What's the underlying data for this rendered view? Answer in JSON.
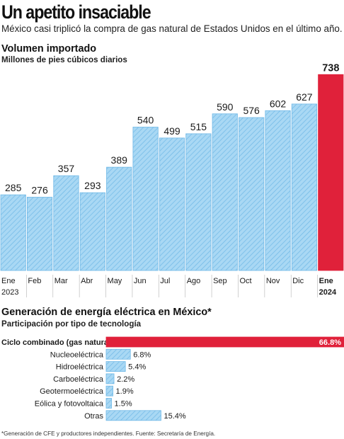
{
  "title": "Un apetito insaciable",
  "subtitle": "México casi triplicó la compra de gas natural de Estados Unidos en el último año.",
  "footnote": "*Generación de CFE y productores independientes. Fuente: Secretaría de Energía.",
  "colors": {
    "bar": "#a9d8f4",
    "bar_hatch": "#6fb8e6",
    "highlight": "#e0213a"
  },
  "chart_data": [
    {
      "type": "bar",
      "title": "Volumen importado",
      "subtitle": "Millones de pies cúbicos diarios",
      "categories": [
        [
          "Ene",
          "2023"
        ],
        [
          "Feb",
          ""
        ],
        [
          "Mar",
          ""
        ],
        [
          "Abr",
          ""
        ],
        [
          "May",
          ""
        ],
        [
          "Jun",
          ""
        ],
        [
          "Jul",
          ""
        ],
        [
          "Ago",
          ""
        ],
        [
          "Sep",
          ""
        ],
        [
          "Oct",
          ""
        ],
        [
          "Nov",
          ""
        ],
        [
          "Dic",
          ""
        ],
        [
          "Ene",
          "2024"
        ]
      ],
      "values": [
        285,
        276,
        357,
        293,
        389,
        540,
        499,
        515,
        590,
        576,
        602,
        627,
        738
      ],
      "highlight_index": 12,
      "ylim": [
        0,
        800
      ]
    },
    {
      "type": "bar",
      "orientation": "horizontal",
      "title": "Generación de energía eléctrica en México*",
      "subtitle": "Participación por tipo de tecnología",
      "categories": [
        "Ciclo combinado (gas natural)",
        "Nucleoeléctrica",
        "Hidroeléctrica",
        "Carboeléctrica",
        "Geotermoeléctrica",
        "Eólica y fotovoltaica",
        "Otras"
      ],
      "values": [
        66.8,
        6.8,
        5.4,
        2.2,
        1.9,
        1.5,
        15.4
      ],
      "value_labels": [
        "66.8%",
        "6.8%",
        "5.4%",
        "2.2%",
        "1.9%",
        "1.5%",
        "15.4%"
      ],
      "highlight_index": 0,
      "xlim": [
        0,
        66.8
      ]
    }
  ]
}
